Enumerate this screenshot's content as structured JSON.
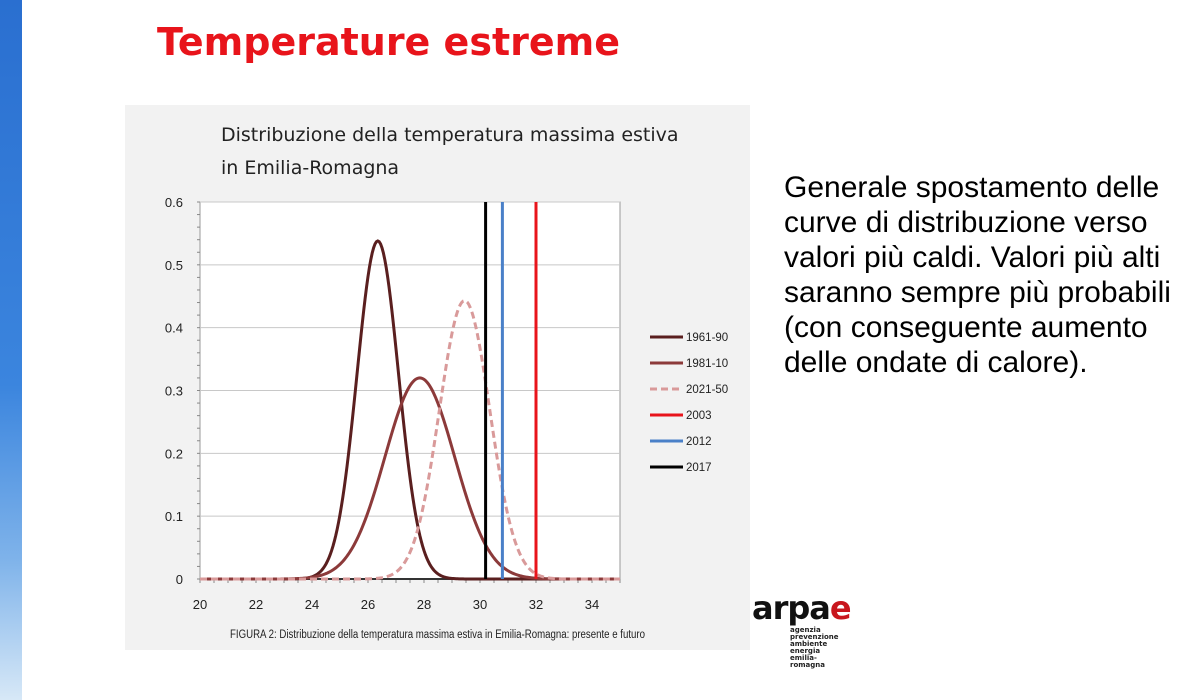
{
  "slide": {
    "title": "Temperature estreme",
    "description": "Generale spostamento delle curve di distribuzione verso valori più caldi. Valori più alti saranno sempre più probabili (con conseguente aumento delle ondate di calore)."
  },
  "logo": {
    "word_main": "arpa",
    "word_end": "e",
    "subtitle_lines": [
      "agenzia",
      "prevenzione",
      "ambiente energia",
      "emilia-romagna"
    ]
  },
  "chart_data": {
    "type": "line",
    "title_lines": [
      "Distribuzione della temperatura massima estiva",
      "in Emilia-Romagna"
    ],
    "caption": "FIGURA 2: Distribuzione della temperatura massima estiva in Emilia-Romagna: presente e futuro",
    "xlim": [
      20,
      35
    ],
    "ylim": [
      0,
      0.6
    ],
    "xticks": [
      20,
      22,
      24,
      26,
      28,
      30,
      32,
      34
    ],
    "yticks": [
      0,
      0.1,
      0.2,
      0.3,
      0.4,
      0.5,
      0.6
    ],
    "ytick_labels": [
      "0",
      "0.1",
      "0.2",
      "0.3",
      "0.4",
      "0.5",
      "0.6"
    ],
    "grid": true,
    "legend_position": "right",
    "series": [
      {
        "name": "1961-90",
        "kind": "curve",
        "peak_x": 26.35,
        "peak_y": 0.538,
        "color": "#5a1f1f",
        "dashed": false
      },
      {
        "name": "1981-10",
        "kind": "curve",
        "peak_x": 27.85,
        "peak_y": 0.32,
        "color": "#8c3a3a",
        "dashed": false
      },
      {
        "name": "2021-50",
        "kind": "curve",
        "peak_x": 29.45,
        "peak_y": 0.443,
        "color": "#d99a9a",
        "dashed": true
      },
      {
        "name": "2003",
        "kind": "vline",
        "x": 32.0,
        "color": "#e8141b",
        "dashed": false
      },
      {
        "name": "2012",
        "kind": "vline",
        "x": 30.8,
        "color": "#4a80c8",
        "dashed": false
      },
      {
        "name": "2017",
        "kind": "vline",
        "x": 30.2,
        "color": "#000000",
        "dashed": false
      }
    ]
  }
}
